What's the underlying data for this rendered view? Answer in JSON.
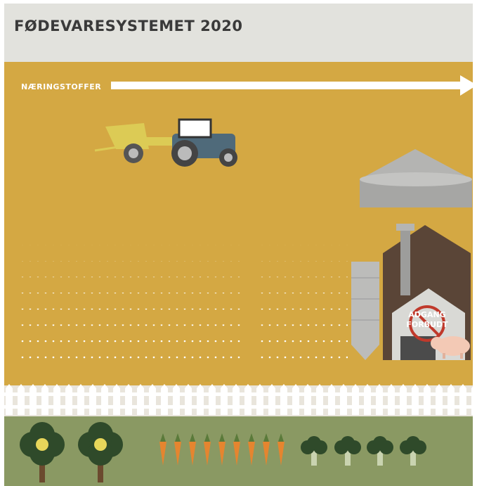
{
  "header": {
    "title": "FØDEVARESYSTEMET 2020"
  },
  "field": {
    "arrow_label": "NÆRINGSTOFFER"
  },
  "barn": {
    "sign": [
      "ADGANG",
      "FORBUDT"
    ]
  }
}
